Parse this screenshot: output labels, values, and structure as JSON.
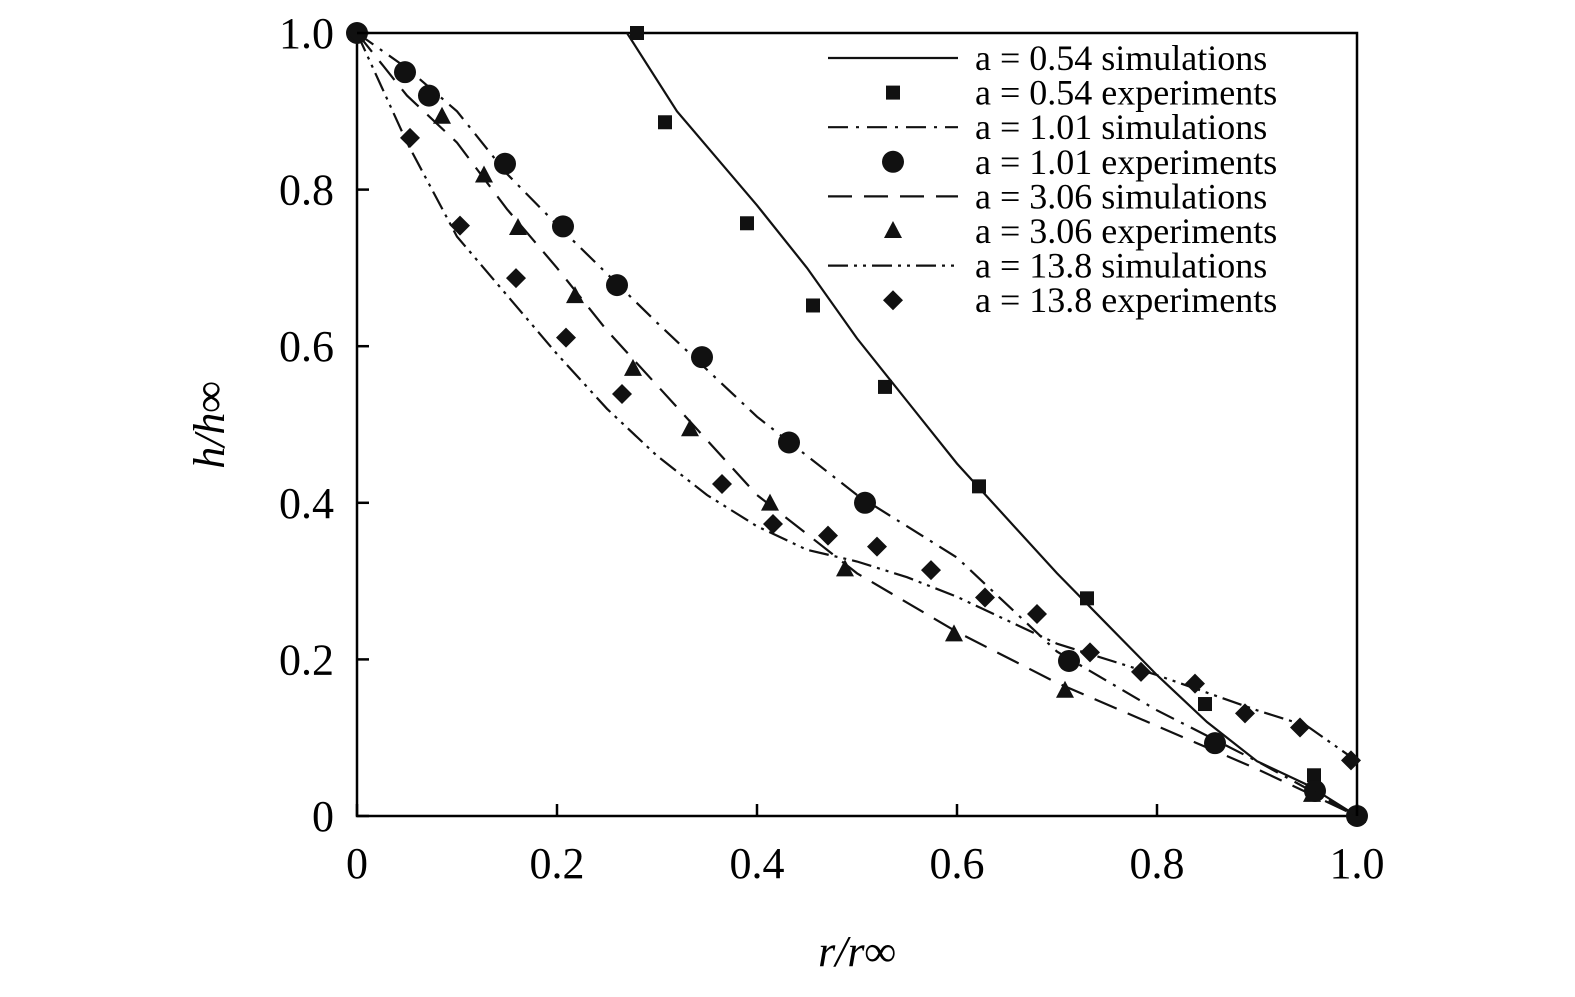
{
  "chart_data": {
    "type": "line",
    "xlabel": "r/r∞",
    "ylabel": "h/h∞",
    "xlim": [
      0,
      1.0
    ],
    "ylim": [
      0,
      1.0
    ],
    "x_ticks": [
      {
        "value": 0,
        "label": "0"
      },
      {
        "value": 0.2,
        "label": "0.2"
      },
      {
        "value": 0.4,
        "label": "0.4"
      },
      {
        "value": 0.6,
        "label": "0.6"
      },
      {
        "value": 0.8,
        "label": "0.8"
      },
      {
        "value": 1.0,
        "label": "1.0"
      }
    ],
    "y_ticks": [
      {
        "value": 0,
        "label": "0"
      },
      {
        "value": 0.2,
        "label": "0.2"
      },
      {
        "value": 0.4,
        "label": "0.4"
      },
      {
        "value": 0.6,
        "label": "0.6"
      },
      {
        "value": 0.8,
        "label": "0.8"
      },
      {
        "value": 1.0,
        "label": "1.0"
      }
    ],
    "grid": false,
    "legend_position": "top-right",
    "series": [
      {
        "name": "a = 0.54 simulations",
        "kind": "line",
        "style": "solid",
        "points": [
          [
            0.27,
            1.0
          ],
          [
            0.32,
            0.9
          ],
          [
            0.36,
            0.84
          ],
          [
            0.4,
            0.78
          ],
          [
            0.45,
            0.7
          ],
          [
            0.5,
            0.61
          ],
          [
            0.55,
            0.53
          ],
          [
            0.6,
            0.45
          ],
          [
            0.65,
            0.38
          ],
          [
            0.7,
            0.31
          ],
          [
            0.75,
            0.245
          ],
          [
            0.8,
            0.18
          ],
          [
            0.85,
            0.12
          ],
          [
            0.9,
            0.07
          ],
          [
            0.95,
            0.04
          ],
          [
            1.0,
            0.0
          ]
        ]
      },
      {
        "name": "a = 0.54 experiments",
        "kind": "marker",
        "marker": "square",
        "points": [
          [
            0.28,
            1.0
          ],
          [
            0.308,
            0.886
          ],
          [
            0.39,
            0.757
          ],
          [
            0.456,
            0.652
          ],
          [
            0.528,
            0.548
          ],
          [
            0.622,
            0.421
          ],
          [
            0.73,
            0.278
          ],
          [
            0.848,
            0.143
          ],
          [
            0.957,
            0.052
          ],
          [
            1.0,
            0.0
          ]
        ]
      },
      {
        "name": "a = 1.01 simulations",
        "kind": "line",
        "style": "dash-dot",
        "points": [
          [
            0.0,
            1.0
          ],
          [
            0.05,
            0.955
          ],
          [
            0.1,
            0.9
          ],
          [
            0.15,
            0.82
          ],
          [
            0.2,
            0.755
          ],
          [
            0.3,
            0.63
          ],
          [
            0.4,
            0.51
          ],
          [
            0.5,
            0.41
          ],
          [
            0.6,
            0.33
          ],
          [
            0.7,
            0.21
          ],
          [
            0.8,
            0.135
          ],
          [
            0.9,
            0.07
          ],
          [
            1.0,
            0.0
          ]
        ]
      },
      {
        "name": "a = 1.01 experiments",
        "kind": "marker",
        "marker": "circle",
        "points": [
          [
            0.0,
            1.0
          ],
          [
            0.048,
            0.95
          ],
          [
            0.072,
            0.92
          ],
          [
            0.148,
            0.833
          ],
          [
            0.206,
            0.753
          ],
          [
            0.26,
            0.678
          ],
          [
            0.345,
            0.586
          ],
          [
            0.432,
            0.477
          ],
          [
            0.508,
            0.4
          ],
          [
            0.712,
            0.198
          ],
          [
            0.858,
            0.093
          ],
          [
            0.958,
            0.032
          ],
          [
            1.0,
            0.0
          ]
        ]
      },
      {
        "name": "a = 3.06 simulations",
        "kind": "line",
        "style": "dashed",
        "points": [
          [
            0.0,
            1.0
          ],
          [
            0.05,
            0.92
          ],
          [
            0.1,
            0.86
          ],
          [
            0.15,
            0.775
          ],
          [
            0.2,
            0.7
          ],
          [
            0.25,
            0.62
          ],
          [
            0.3,
            0.55
          ],
          [
            0.35,
            0.48
          ],
          [
            0.4,
            0.41
          ],
          [
            0.45,
            0.36
          ],
          [
            0.5,
            0.31
          ],
          [
            0.6,
            0.235
          ],
          [
            0.7,
            0.17
          ],
          [
            0.8,
            0.115
          ],
          [
            0.9,
            0.06
          ],
          [
            1.0,
            0.0
          ]
        ]
      },
      {
        "name": "a = 3.06 experiments",
        "kind": "marker",
        "marker": "triangle",
        "points": [
          [
            0.0,
            1.0
          ],
          [
            0.085,
            0.893
          ],
          [
            0.127,
            0.818
          ],
          [
            0.161,
            0.751
          ],
          [
            0.218,
            0.664
          ],
          [
            0.276,
            0.571
          ],
          [
            0.333,
            0.494
          ],
          [
            0.413,
            0.399
          ],
          [
            0.488,
            0.315
          ],
          [
            0.597,
            0.232
          ],
          [
            0.708,
            0.16
          ],
          [
            0.955,
            0.027
          ],
          [
            1.0,
            0.0
          ]
        ]
      },
      {
        "name": "a = 13.8 simulations",
        "kind": "line",
        "style": "dash-dot-dot",
        "points": [
          [
            0.0,
            1.0
          ],
          [
            0.05,
            0.86
          ],
          [
            0.1,
            0.74
          ],
          [
            0.15,
            0.665
          ],
          [
            0.2,
            0.59
          ],
          [
            0.25,
            0.52
          ],
          [
            0.3,
            0.46
          ],
          [
            0.35,
            0.41
          ],
          [
            0.4,
            0.37
          ],
          [
            0.45,
            0.34
          ],
          [
            0.5,
            0.325
          ],
          [
            0.55,
            0.305
          ],
          [
            0.6,
            0.28
          ],
          [
            0.65,
            0.25
          ],
          [
            0.7,
            0.22
          ],
          [
            0.8,
            0.18
          ],
          [
            0.9,
            0.135
          ],
          [
            0.95,
            0.115
          ],
          [
            1.0,
            0.07
          ]
        ]
      },
      {
        "name": "a = 13.8 experiments",
        "kind": "marker",
        "marker": "diamond",
        "points": [
          [
            0.0,
            1.0
          ],
          [
            0.053,
            0.866
          ],
          [
            0.103,
            0.754
          ],
          [
            0.159,
            0.687
          ],
          [
            0.209,
            0.611
          ],
          [
            0.265,
            0.539
          ],
          [
            0.365,
            0.424
          ],
          [
            0.416,
            0.373
          ],
          [
            0.471,
            0.358
          ],
          [
            0.52,
            0.344
          ],
          [
            0.574,
            0.314
          ],
          [
            0.628,
            0.279
          ],
          [
            0.68,
            0.258
          ],
          [
            0.733,
            0.209
          ],
          [
            0.784,
            0.184
          ],
          [
            0.838,
            0.169
          ],
          [
            0.888,
            0.131
          ],
          [
            0.943,
            0.113
          ],
          [
            0.994,
            0.071
          ]
        ]
      }
    ]
  }
}
